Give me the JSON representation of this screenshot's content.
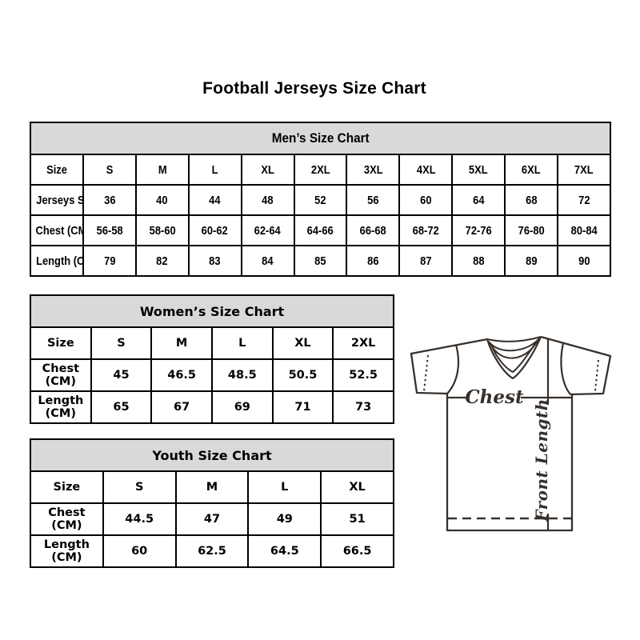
{
  "title": "Football Jerseys Size Chart",
  "colors": {
    "table_header_bg": "#d9d9d9",
    "table_border": "#000000",
    "text": "#000000",
    "diagram_line": "#38302b"
  },
  "chart_data": [
    {
      "type": "table",
      "title": "Men’s Size Chart",
      "rows": [
        [
          "Size",
          "S",
          "M",
          "L",
          "XL",
          "2XL",
          "3XL",
          "4XL",
          "5XL",
          "6XL",
          "7XL"
        ],
        [
          "Jerseys Size",
          "36",
          "40",
          "44",
          "48",
          "52",
          "56",
          "60",
          "64",
          "68",
          "72"
        ],
        [
          "Chest (CM)",
          "56-58",
          "58-60",
          "60-62",
          "62-64",
          "64-66",
          "66-68",
          "68-72",
          "72-76",
          "76-80",
          "80-84"
        ],
        [
          "Length (CM)",
          "79",
          "82",
          "83",
          "84",
          "85",
          "86",
          "87",
          "88",
          "89",
          "90"
        ]
      ]
    },
    {
      "type": "table",
      "title": "Women’s Size Chart",
      "rows": [
        [
          "Size",
          "S",
          "M",
          "L",
          "XL",
          "2XL"
        ],
        [
          "Chest (CM)",
          "45",
          "46.5",
          "48.5",
          "50.5",
          "52.5"
        ],
        [
          "Length (CM)",
          "65",
          "67",
          "69",
          "71",
          "73"
        ]
      ]
    },
    {
      "type": "table",
      "title": "Youth Size Chart",
      "rows": [
        [
          "Size",
          "S",
          "M",
          "L",
          "XL"
        ],
        [
          "Chest (CM)",
          "44.5",
          "47",
          "49",
          "51"
        ],
        [
          "Length (CM)",
          "60",
          "62.5",
          "64.5",
          "66.5"
        ]
      ]
    }
  ],
  "diagram": {
    "chest_label": "Chest",
    "front_length_label": "Front Length"
  }
}
